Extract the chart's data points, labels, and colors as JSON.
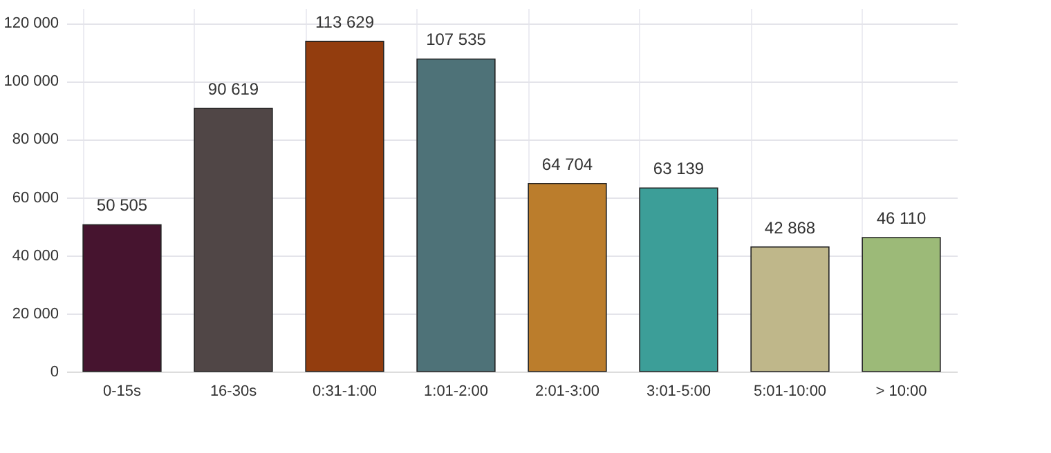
{
  "chart_data": {
    "type": "bar",
    "categories": [
      "0-15s",
      "16-30s",
      "0:31-1:00",
      "1:01-2:00",
      "2:01-3:00",
      "3:01-5:00",
      "5:01-10:00",
      "> 10:00"
    ],
    "values": [
      50505,
      90619,
      113629,
      107535,
      64704,
      63139,
      42868,
      46110
    ],
    "value_labels": [
      "50 505",
      "90 619",
      "113 629",
      "107 535",
      "64 704",
      "63 139",
      "42 868",
      "46 110"
    ],
    "colors": [
      "#46142f",
      "#504646",
      "#933d0e",
      "#4e7278",
      "#bb7d2c",
      "#3c9e98",
      "#bfb78a",
      "#9cba78"
    ],
    "ylim": [
      0,
      125000
    ],
    "yticks": [
      0,
      {
        "value": 20000,
        "label": "20 000"
      },
      {
        "value": 40000,
        "label": "40 000"
      },
      {
        "value": 60000,
        "label": "60 000"
      },
      {
        "value": 80000,
        "label": "80 000"
      },
      {
        "value": 100000,
        "label": "100 000"
      },
      {
        "value": 120000,
        "label": "120 000"
      }
    ],
    "grid": true
  }
}
